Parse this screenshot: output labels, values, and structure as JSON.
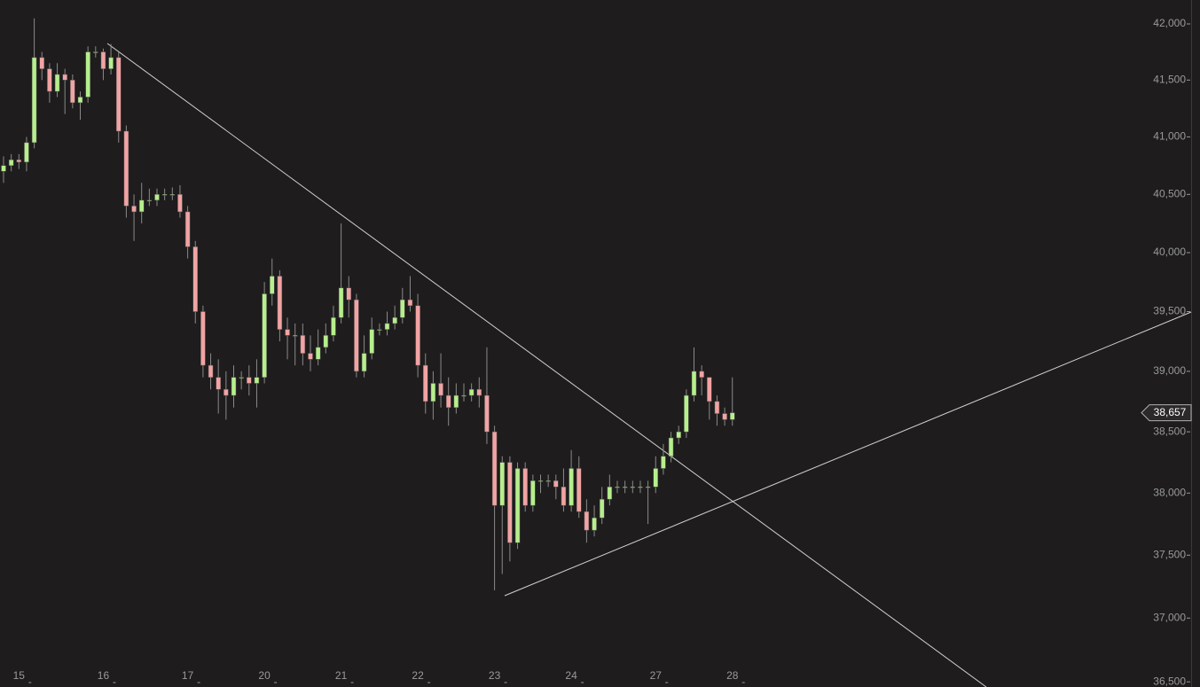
{
  "chart_data": {
    "type": "candlestick",
    "categories": [
      null,
      null,
      "15",
      null,
      null,
      null,
      null,
      null,
      null,
      null,
      null,
      null,
      null,
      "16",
      null,
      null,
      null,
      null,
      null,
      null,
      null,
      null,
      null,
      null,
      "17",
      null,
      null,
      null,
      null,
      null,
      null,
      null,
      null,
      null,
      "20",
      null,
      null,
      null,
      null,
      null,
      null,
      null,
      null,
      null,
      "21",
      null,
      null,
      null,
      null,
      null,
      null,
      null,
      null,
      null,
      "22",
      null,
      null,
      null,
      null,
      null,
      null,
      null,
      null,
      null,
      "23",
      null,
      null,
      null,
      null,
      null,
      null,
      null,
      null,
      null,
      "24",
      null,
      null,
      null,
      null,
      null,
      null,
      null,
      null,
      null,
      null,
      "27",
      null,
      null,
      null,
      null,
      null,
      null,
      null,
      null,
      null,
      "28"
    ],
    "open": [
      40700,
      40750,
      40800,
      40780,
      40950,
      41700,
      41600,
      41400,
      41550,
      41500,
      41300,
      41350,
      41750,
      41750,
      41600,
      41700,
      41050,
      40400,
      40350,
      40450,
      40450,
      40500,
      40500,
      40500,
      40350,
      40050,
      39500,
      39050,
      38950,
      38850,
      38800,
      38950,
      38950,
      38900,
      38950,
      39650,
      39800,
      39350,
      39300,
      39300,
      39150,
      39100,
      39200,
      39300,
      39450,
      39700,
      39600,
      39000,
      39150,
      39350,
      39350,
      39400,
      39450,
      39600,
      39550,
      39050,
      38750,
      38900,
      38800,
      38700,
      38800,
      38800,
      38850,
      38800,
      38500,
      37900,
      38250,
      37600,
      38200,
      37900,
      38100,
      38100,
      38100,
      38050,
      37900,
      38200,
      37850,
      37700,
      37800,
      37950,
      38050,
      38050,
      38050,
      38050,
      38050,
      38050,
      38200,
      38300,
      38450,
      38500,
      38800,
      39000,
      38950,
      38750,
      38650,
      38600
    ],
    "high": [
      40830,
      40850,
      40850,
      41000,
      42050,
      41750,
      41650,
      41650,
      41600,
      41550,
      41400,
      41800,
      41800,
      41780,
      41820,
      41750,
      41100,
      40500,
      40600,
      40550,
      40550,
      40550,
      40560,
      40580,
      40400,
      40100,
      39550,
      39150,
      39100,
      39000,
      39050,
      39000,
      39050,
      39100,
      39750,
      39950,
      39850,
      39450,
      39400,
      39400,
      39300,
      39350,
      39400,
      39550,
      40250,
      39800,
      39650,
      39300,
      39450,
      39400,
      39500,
      39550,
      39700,
      39800,
      39650,
      39150,
      39000,
      39150,
      38950,
      38900,
      38900,
      38900,
      38950,
      39200,
      38550,
      38300,
      38300,
      38250,
      38250,
      38150,
      38150,
      38150,
      38150,
      38200,
      38350,
      38300,
      37950,
      37900,
      38050,
      38150,
      38100,
      38100,
      38100,
      38100,
      38100,
      38300,
      38400,
      38500,
      38550,
      38850,
      39200,
      39050,
      38950,
      38800,
      38700,
      38950
    ],
    "low": [
      40600,
      40700,
      40720,
      40700,
      40900,
      41500,
      41300,
      41350,
      41200,
      41250,
      41150,
      41300,
      41700,
      41500,
      41550,
      40950,
      40300,
      40100,
      40250,
      40400,
      40400,
      40450,
      40450,
      40300,
      39950,
      39400,
      38950,
      38850,
      38650,
      38600,
      38700,
      38850,
      38800,
      38700,
      38900,
      39550,
      39250,
      39100,
      39050,
      39050,
      39000,
      39050,
      39150,
      39250,
      39400,
      39450,
      38950,
      38950,
      39100,
      39300,
      39300,
      39350,
      39400,
      39500,
      38950,
      38650,
      38600,
      38700,
      38550,
      38650,
      38750,
      38750,
      38700,
      38400,
      37220,
      37350,
      37450,
      37550,
      37850,
      37850,
      38000,
      38050,
      37950,
      37850,
      37850,
      37800,
      37600,
      37650,
      37750,
      37900,
      38000,
      38000,
      38000,
      38000,
      37750,
      38000,
      38150,
      38250,
      38400,
      38450,
      38750,
      38800,
      38600,
      38550,
      38550,
      38550
    ],
    "close": [
      40750,
      40800,
      40780,
      40950,
      41700,
      41600,
      41400,
      41550,
      41500,
      41300,
      41350,
      41750,
      41750,
      41600,
      41700,
      41050,
      40400,
      40350,
      40450,
      40450,
      40500,
      40500,
      40500,
      40350,
      40050,
      39500,
      39050,
      38950,
      38850,
      38800,
      38950,
      38950,
      38900,
      38950,
      39650,
      39800,
      39350,
      39300,
      39300,
      39150,
      39100,
      39200,
      39300,
      39450,
      39700,
      39600,
      39000,
      39150,
      39350,
      39350,
      39400,
      39450,
      39600,
      39550,
      39050,
      38750,
      38900,
      38800,
      38700,
      38800,
      38800,
      38850,
      38800,
      38500,
      37900,
      38250,
      37600,
      38200,
      37900,
      38100,
      38100,
      38100,
      38050,
      37900,
      38200,
      37850,
      37700,
      37800,
      37950,
      38050,
      38050,
      38050,
      38050,
      38050,
      38050,
      38200,
      38300,
      38450,
      38500,
      38800,
      39000,
      38950,
      38750,
      38650,
      38600,
      38657
    ],
    "up_color": "#b6ef8c",
    "down_color": "#f2a3a3",
    "log_scale": true,
    "ylim": [
      36460,
      42215
    ],
    "yticks": [
      {
        "value": 42000,
        "label": "42,000"
      },
      {
        "value": 41500,
        "label": "41,500"
      },
      {
        "value": 41000,
        "label": "41,000"
      },
      {
        "value": 40500,
        "label": "40,500"
      },
      {
        "value": 40000,
        "label": "40,000"
      },
      {
        "value": 39500,
        "label": "39,500"
      },
      {
        "value": 39000,
        "label": "39,000"
      },
      {
        "value": 38500,
        "label": "38,500"
      },
      {
        "value": 38000,
        "label": "38,000"
      },
      {
        "value": 37500,
        "label": "37,500"
      },
      {
        "value": 37000,
        "label": "37,000"
      },
      {
        "value": 36500,
        "label": "36,500"
      }
    ],
    "last_price": {
      "value": 38657,
      "label": "38,657"
    }
  }
}
